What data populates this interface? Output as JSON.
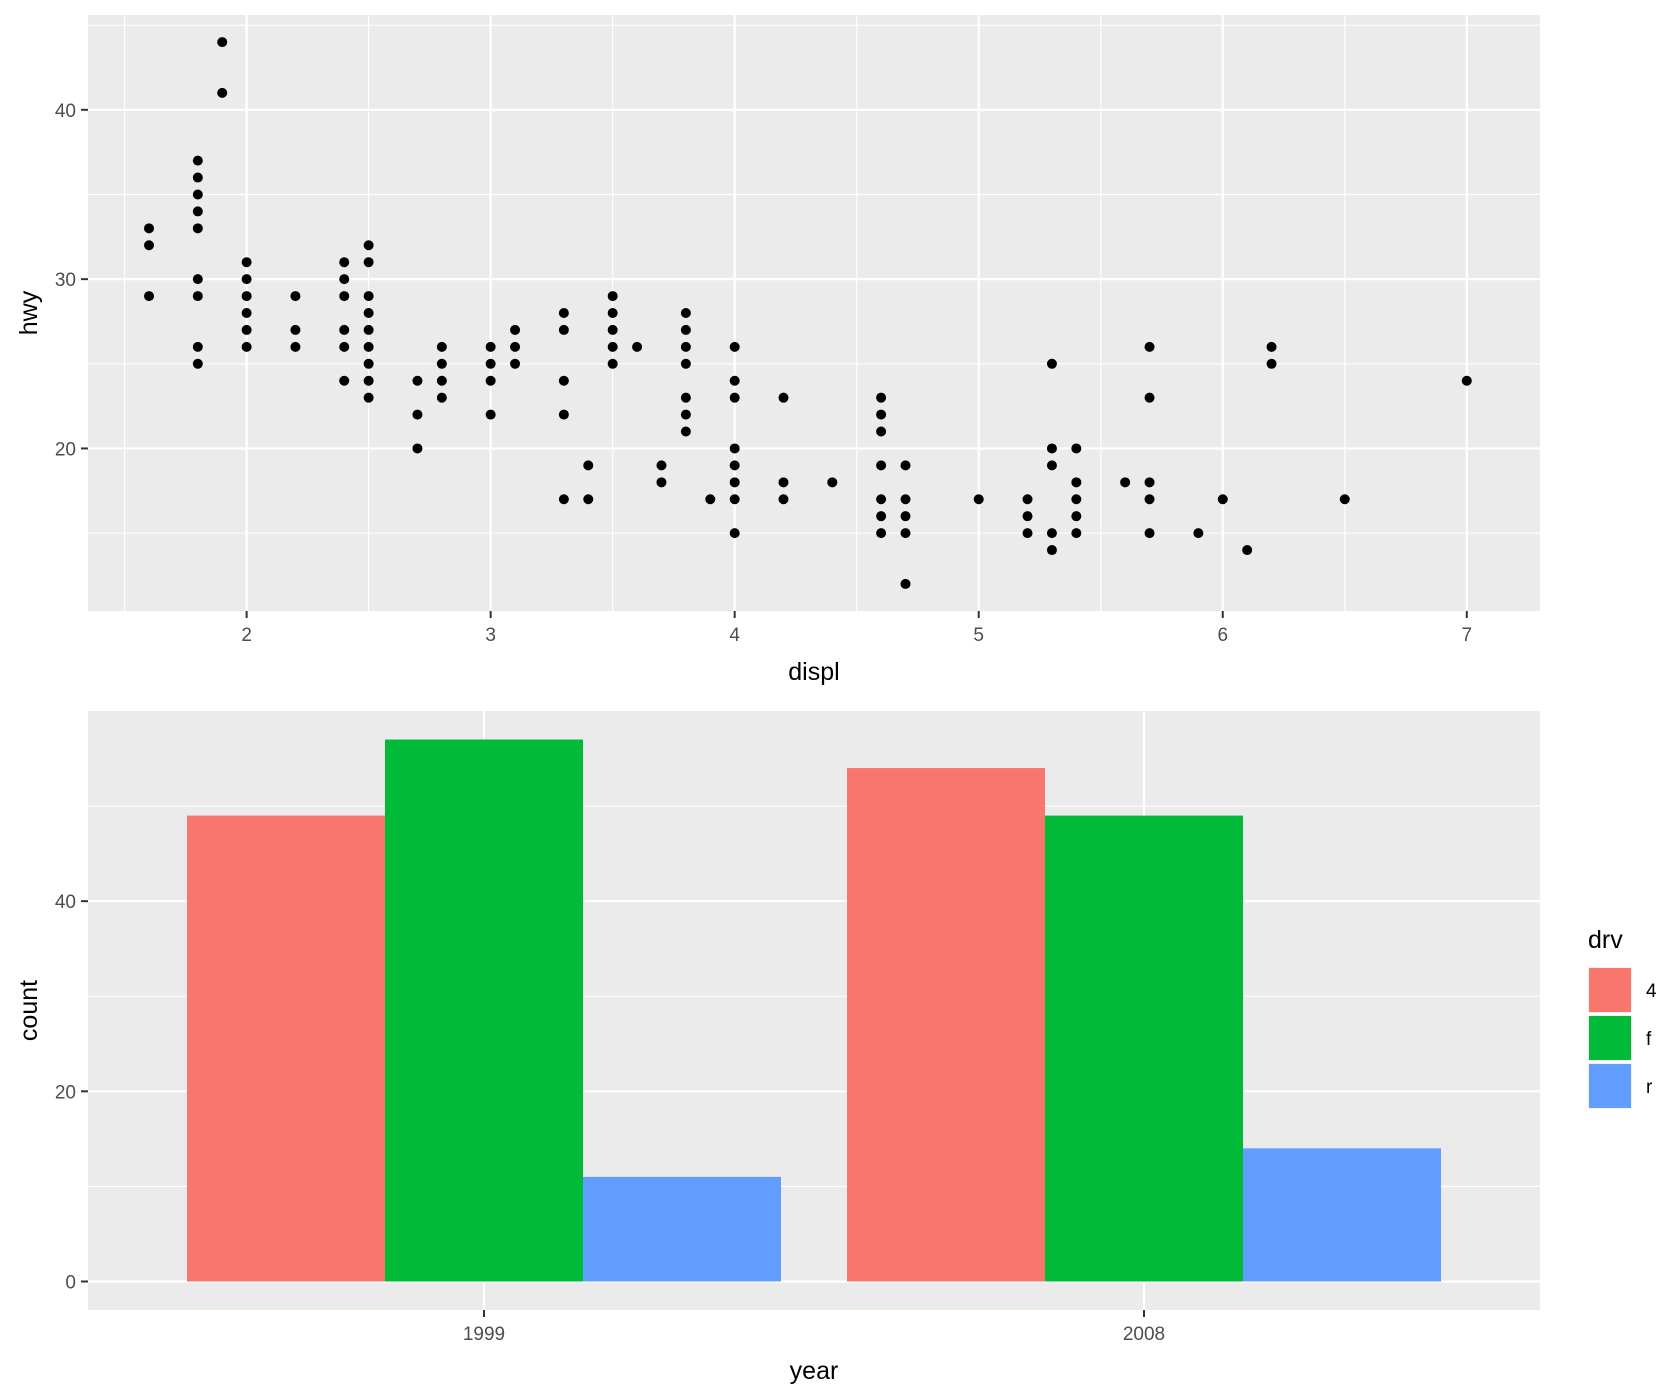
{
  "chart_data": [
    {
      "type": "scatter",
      "title": "",
      "xlabel": "displ",
      "ylabel": "hwy",
      "xlim": [
        1.35,
        7.3
      ],
      "ylim": [
        10.4,
        45.6
      ],
      "x_ticks": [
        2,
        3,
        4,
        5,
        6,
        7
      ],
      "y_ticks": [
        20,
        30,
        40
      ],
      "x_tick_labels": [
        "2",
        "3",
        "4",
        "5",
        "6",
        "7"
      ],
      "y_tick_labels": [
        "20",
        "30",
        "40"
      ],
      "grid": true,
      "point_color": "#000000",
      "points": [
        [
          1.6,
          29
        ],
        [
          1.6,
          32
        ],
        [
          1.6,
          33
        ],
        [
          1.8,
          25
        ],
        [
          1.8,
          26
        ],
        [
          1.8,
          29
        ],
        [
          1.8,
          30
        ],
        [
          1.8,
          33
        ],
        [
          1.8,
          34
        ],
        [
          1.8,
          35
        ],
        [
          1.8,
          36
        ],
        [
          1.8,
          37
        ],
        [
          1.9,
          41
        ],
        [
          1.9,
          44
        ],
        [
          2.0,
          26
        ],
        [
          2.0,
          27
        ],
        [
          2.0,
          28
        ],
        [
          2.0,
          29
        ],
        [
          2.0,
          30
        ],
        [
          2.0,
          31
        ],
        [
          2.2,
          26
        ],
        [
          2.2,
          27
        ],
        [
          2.2,
          29
        ],
        [
          2.4,
          24
        ],
        [
          2.4,
          26
        ],
        [
          2.4,
          27
        ],
        [
          2.4,
          29
        ],
        [
          2.4,
          30
        ],
        [
          2.4,
          31
        ],
        [
          2.5,
          23
        ],
        [
          2.5,
          24
        ],
        [
          2.5,
          25
        ],
        [
          2.5,
          26
        ],
        [
          2.5,
          27
        ],
        [
          2.5,
          28
        ],
        [
          2.5,
          29
        ],
        [
          2.5,
          31
        ],
        [
          2.5,
          32
        ],
        [
          2.7,
          20
        ],
        [
          2.7,
          22
        ],
        [
          2.7,
          24
        ],
        [
          2.8,
          23
        ],
        [
          2.8,
          24
        ],
        [
          2.8,
          25
        ],
        [
          2.8,
          26
        ],
        [
          3.0,
          22
        ],
        [
          3.0,
          24
        ],
        [
          3.0,
          25
        ],
        [
          3.0,
          26
        ],
        [
          3.1,
          25
        ],
        [
          3.1,
          26
        ],
        [
          3.1,
          27
        ],
        [
          3.3,
          17
        ],
        [
          3.3,
          22
        ],
        [
          3.3,
          24
        ],
        [
          3.3,
          27
        ],
        [
          3.3,
          28
        ],
        [
          3.4,
          17
        ],
        [
          3.4,
          19
        ],
        [
          3.5,
          25
        ],
        [
          3.5,
          26
        ],
        [
          3.5,
          27
        ],
        [
          3.5,
          28
        ],
        [
          3.5,
          29
        ],
        [
          3.6,
          26
        ],
        [
          3.7,
          18
        ],
        [
          3.7,
          19
        ],
        [
          3.8,
          21
        ],
        [
          3.8,
          22
        ],
        [
          3.8,
          23
        ],
        [
          3.8,
          25
        ],
        [
          3.8,
          26
        ],
        [
          3.8,
          27
        ],
        [
          3.8,
          28
        ],
        [
          3.9,
          17
        ],
        [
          4.0,
          15
        ],
        [
          4.0,
          17
        ],
        [
          4.0,
          18
        ],
        [
          4.0,
          19
        ],
        [
          4.0,
          20
        ],
        [
          4.0,
          23
        ],
        [
          4.0,
          24
        ],
        [
          4.0,
          26
        ],
        [
          4.2,
          17
        ],
        [
          4.2,
          18
        ],
        [
          4.2,
          23
        ],
        [
          4.4,
          18
        ],
        [
          4.6,
          15
        ],
        [
          4.6,
          16
        ],
        [
          4.6,
          17
        ],
        [
          4.6,
          19
        ],
        [
          4.6,
          21
        ],
        [
          4.6,
          22
        ],
        [
          4.6,
          23
        ],
        [
          4.7,
          12
        ],
        [
          4.7,
          15
        ],
        [
          4.7,
          16
        ],
        [
          4.7,
          17
        ],
        [
          4.7,
          19
        ],
        [
          5.0,
          17
        ],
        [
          5.2,
          15
        ],
        [
          5.2,
          16
        ],
        [
          5.2,
          17
        ],
        [
          5.3,
          14
        ],
        [
          5.3,
          15
        ],
        [
          5.3,
          19
        ],
        [
          5.3,
          20
        ],
        [
          5.3,
          25
        ],
        [
          5.4,
          15
        ],
        [
          5.4,
          16
        ],
        [
          5.4,
          17
        ],
        [
          5.4,
          18
        ],
        [
          5.4,
          20
        ],
        [
          5.6,
          18
        ],
        [
          5.7,
          15
        ],
        [
          5.7,
          17
        ],
        [
          5.7,
          18
        ],
        [
          5.7,
          23
        ],
        [
          5.7,
          26
        ],
        [
          5.9,
          15
        ],
        [
          6.0,
          17
        ],
        [
          6.1,
          14
        ],
        [
          6.2,
          25
        ],
        [
          6.2,
          26
        ],
        [
          6.5,
          17
        ],
        [
          7.0,
          24
        ]
      ]
    },
    {
      "type": "bar",
      "title": "",
      "xlabel": "year",
      "ylabel": "count",
      "categories": [
        "1999",
        "2008"
      ],
      "ylim": [
        -3.0,
        60.0
      ],
      "y_ticks": [
        0,
        20,
        40
      ],
      "y_tick_labels": [
        "0",
        "20",
        "40"
      ],
      "grid": true,
      "legend": {
        "title": "drv",
        "position": "right"
      },
      "series": [
        {
          "name": "4",
          "color": "#F8766D",
          "values": [
            49,
            54
          ]
        },
        {
          "name": "f",
          "color": "#00BA38",
          "values": [
            57,
            49
          ]
        },
        {
          "name": "r",
          "color": "#619CFF",
          "values": [
            11,
            14
          ]
        }
      ]
    }
  ]
}
